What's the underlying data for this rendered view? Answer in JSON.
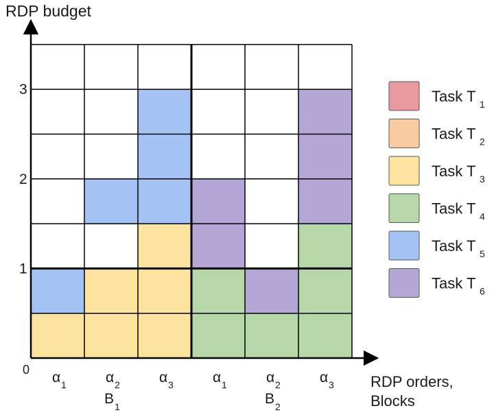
{
  "axes": {
    "y_title": "RDP budget",
    "x_title_line1": "RDP orders,",
    "x_title_line2": "Blocks",
    "origin": "0",
    "y_ticks": [
      {
        "label": "1",
        "value": 1
      },
      {
        "label": "2",
        "value": 2
      },
      {
        "label": "3",
        "value": 3
      }
    ]
  },
  "columns": [
    {
      "order": "α",
      "sub": "1",
      "block": 1
    },
    {
      "order": "α",
      "sub": "2",
      "block": 1
    },
    {
      "order": "α",
      "sub": "3",
      "block": 1
    },
    {
      "order": "α",
      "sub": "1",
      "block": 2
    },
    {
      "order": "α",
      "sub": "2",
      "block": 2
    },
    {
      "order": "α",
      "sub": "3",
      "block": 2
    }
  ],
  "blocks": [
    {
      "label": "B",
      "sub": "1"
    },
    {
      "label": "B",
      "sub": "2"
    }
  ],
  "rows_per_unit": 2,
  "total_rows": 7,
  "legend": [
    {
      "label": "Task T",
      "sub": "1",
      "color": "#ea9a9f"
    },
    {
      "label": "Task T",
      "sub": "2",
      "color": "#f8cba0"
    },
    {
      "label": "Task T",
      "sub": "3",
      "color": "#fde49e"
    },
    {
      "label": "Task T",
      "sub": "4",
      "color": "#b6d7a8"
    },
    {
      "label": "Task T",
      "sub": "5",
      "color": "#a4c2f4"
    },
    {
      "label": "Task T",
      "sub": "6",
      "color": "#b4a7d6"
    }
  ],
  "allocation": [
    [
      3,
      3,
      3,
      4,
      4,
      4
    ],
    [
      5,
      3,
      3,
      4,
      6,
      4
    ],
    [
      0,
      0,
      3,
      6,
      0,
      4
    ],
    [
      0,
      5,
      5,
      6,
      0,
      6
    ],
    [
      0,
      0,
      5,
      0,
      0,
      6
    ],
    [
      0,
      0,
      5,
      0,
      0,
      6
    ],
    [
      0,
      0,
      0,
      0,
      0,
      0
    ]
  ]
}
